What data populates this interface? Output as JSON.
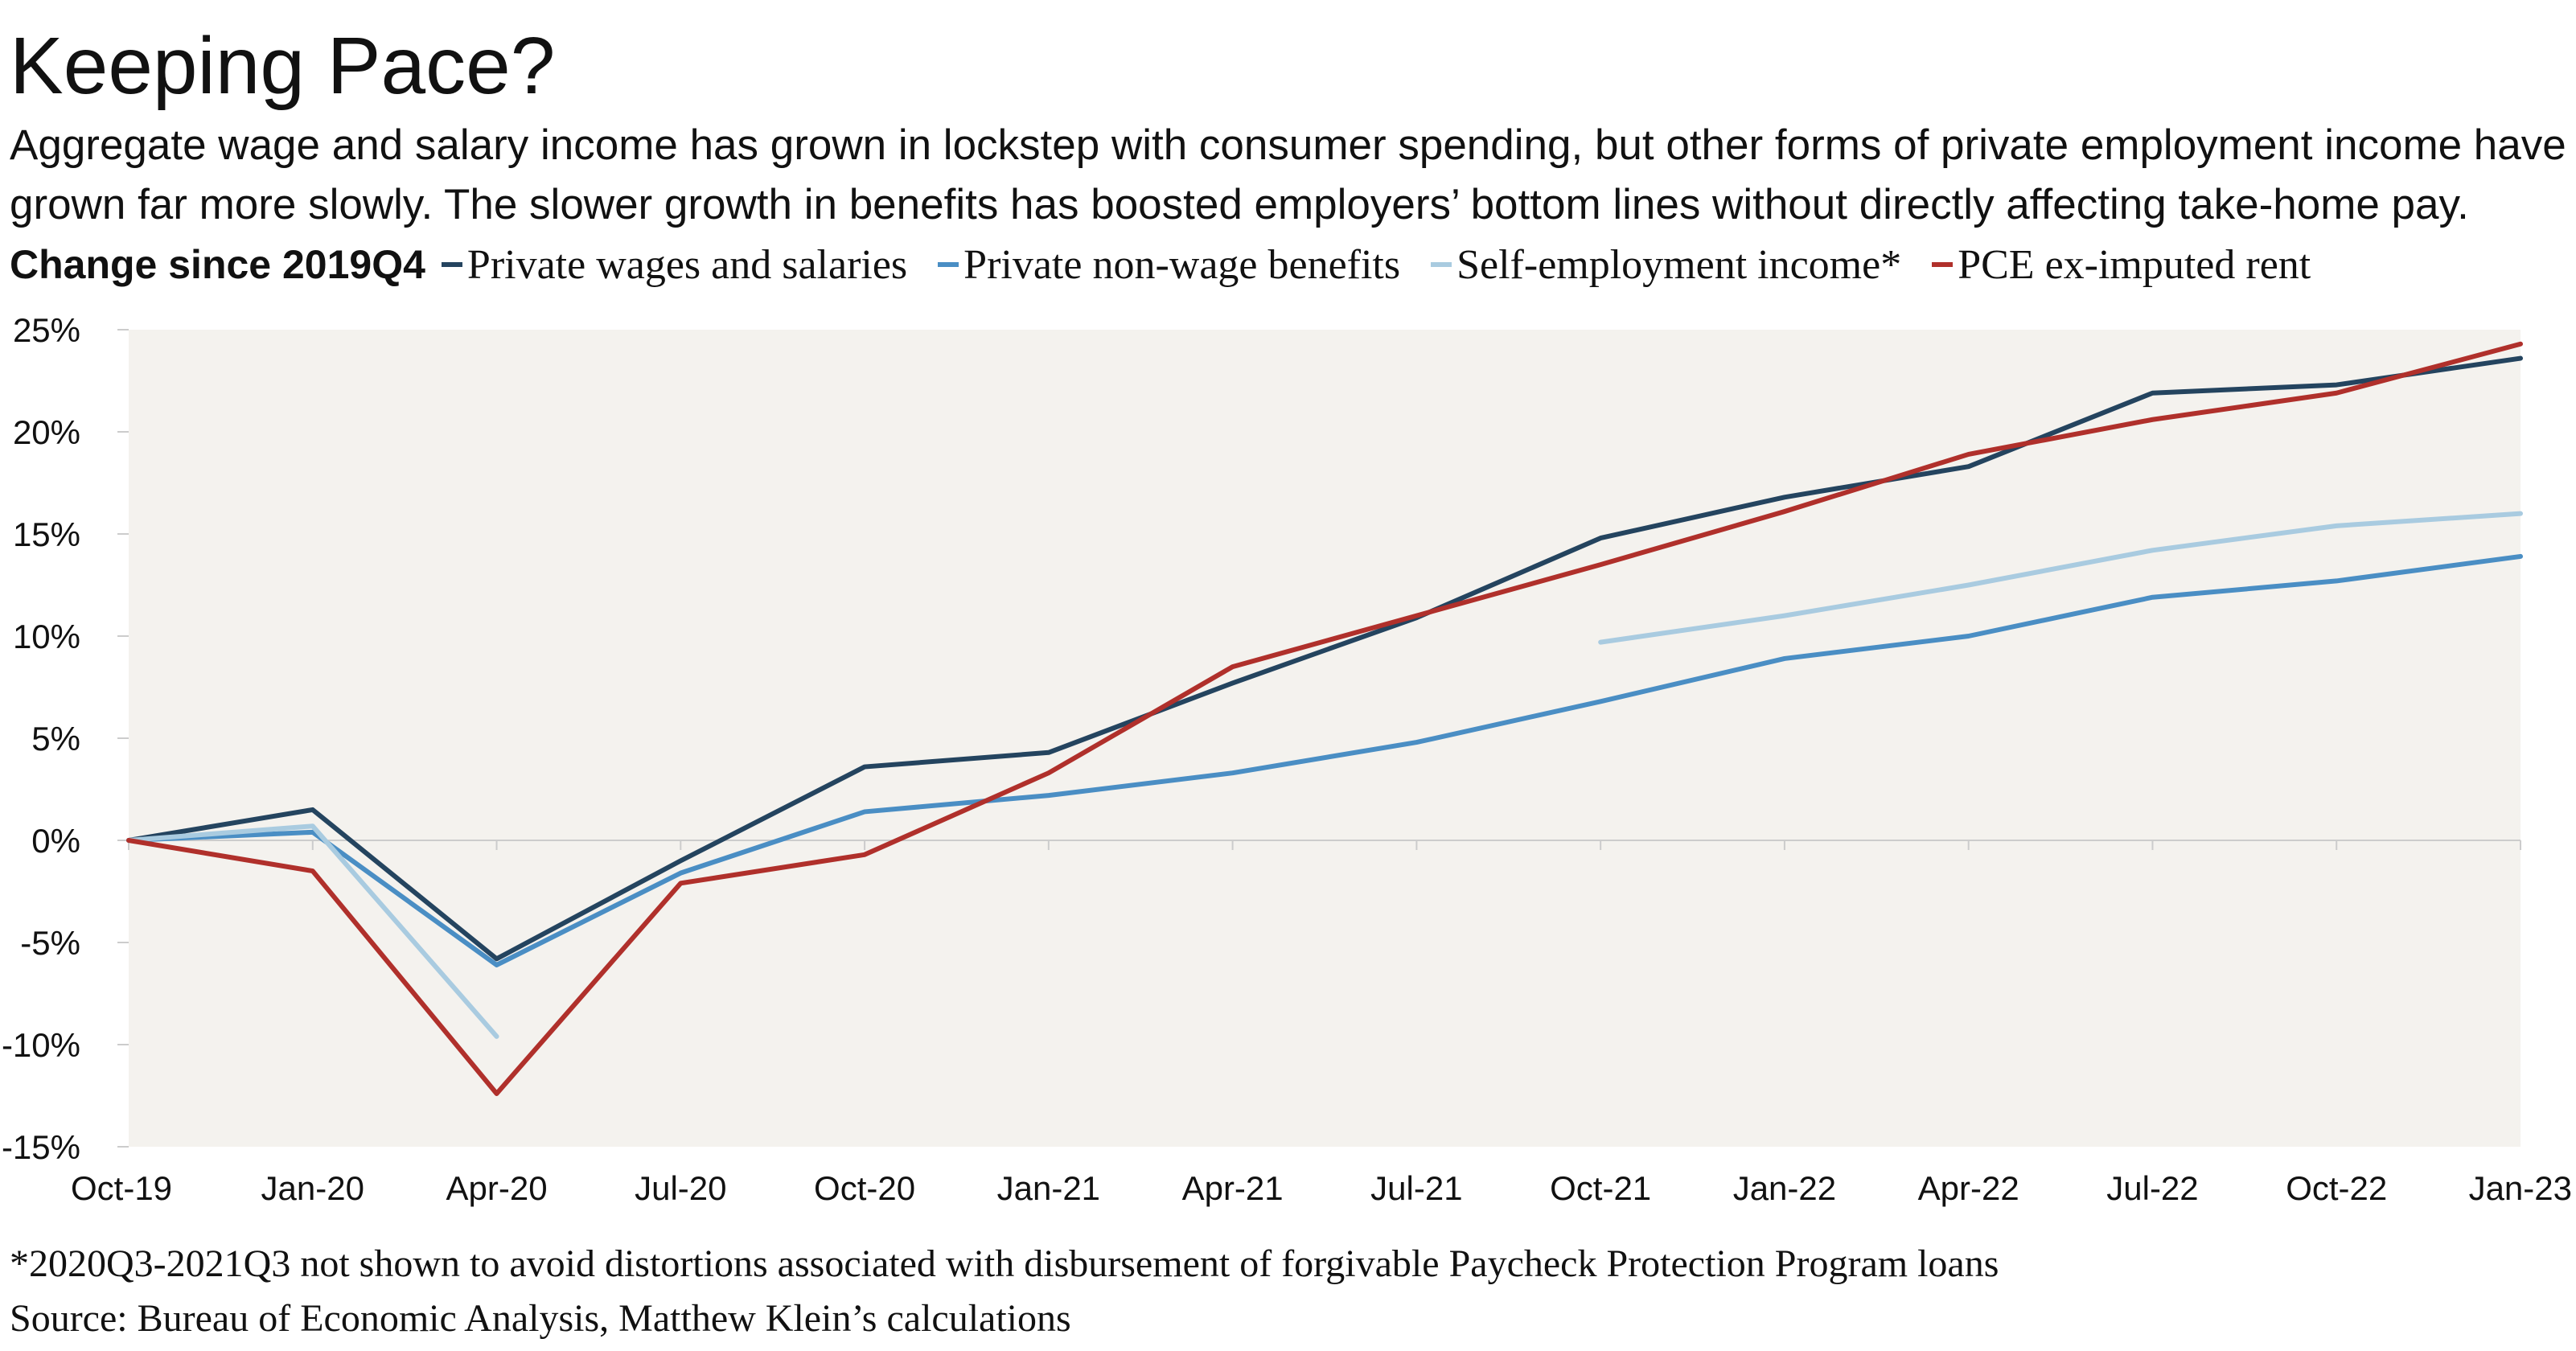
{
  "title": "Keeping Pace?",
  "subtitle": [
    "Aggregate wage and salary income has grown in lockstep with consumer spending, but other forms of private employment income have",
    "grown far more slowly. The slower growth in benefits has boosted employers’ bottom lines without directly affecting take-home pay."
  ],
  "footnote": "*2020Q3-2021Q3 not shown to avoid distortions associated with disbursement of forgivable Paycheck Protection Program loans",
  "source": "Source: Bureau of Economic Analysis, Matthew Klein’s calculations",
  "colors": {
    "plot_background": "#f4f2ee",
    "axis": "#cccccc",
    "text": "#111111"
  },
  "chart_data": {
    "type": "line",
    "legend_title": "Change since 2019Q4",
    "legend_position": "top",
    "categories": [
      "Oct-19",
      "Jan-20",
      "Apr-20",
      "Jul-20",
      "Oct-20",
      "Jan-21",
      "Apr-21",
      "Jul-21",
      "Oct-21",
      "Jan-22",
      "Apr-22",
      "Jul-22",
      "Oct-22",
      "Jan-23"
    ],
    "y_tick_labels": [
      "25%",
      "20%",
      "15%",
      "10%",
      "5%",
      "0%",
      "-5%",
      "-10%",
      "-15%"
    ],
    "y_ticks": [
      25,
      20,
      15,
      10,
      5,
      0,
      -5,
      -10,
      -15
    ],
    "ylim": [
      -15,
      25
    ],
    "grid": false,
    "series": [
      {
        "name": "Private wages and salaries",
        "color": "#24445f",
        "values": [
          0,
          1.5,
          -5.8,
          -1.0,
          3.6,
          4.3,
          7.7,
          10.9,
          14.8,
          16.8,
          18.3,
          21.9,
          22.3,
          23.6
        ]
      },
      {
        "name": "Private non-wage benefits",
        "color": "#4a8ec4",
        "values": [
          0,
          0.4,
          -6.1,
          -1.6,
          1.4,
          2.2,
          3.3,
          4.8,
          6.8,
          8.9,
          10.0,
          11.9,
          12.7,
          13.9
        ]
      },
      {
        "name": "Self-employment income*",
        "color": "#a9cbe0",
        "values": [
          0,
          0.7,
          -9.6,
          null,
          null,
          null,
          null,
          null,
          9.7,
          11.0,
          12.5,
          14.2,
          15.4,
          16.0
        ]
      },
      {
        "name": "PCE ex-imputed rent",
        "color": "#b0302b",
        "values": [
          0,
          -1.5,
          -12.4,
          -2.1,
          -0.7,
          3.3,
          8.5,
          11.0,
          13.5,
          16.1,
          18.9,
          20.6,
          21.9,
          24.3
        ]
      }
    ]
  }
}
